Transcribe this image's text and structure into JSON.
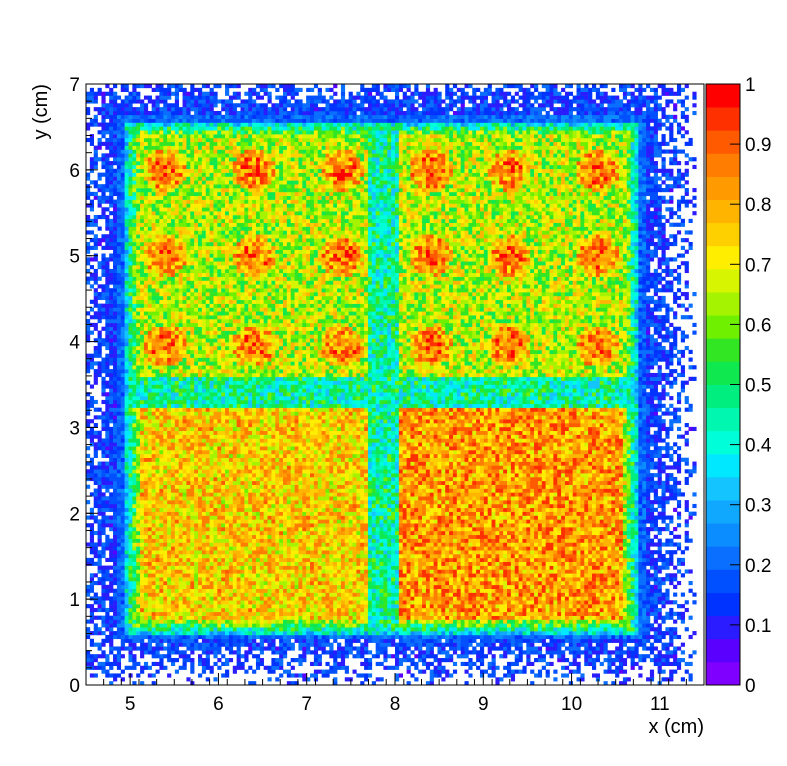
{
  "chart_data": {
    "type": "heatmap",
    "title": "",
    "xlabel": "x (cm)",
    "ylabel": "y (cm)",
    "xlim": [
      4.5,
      11.5
    ],
    "ylim": [
      0,
      7
    ],
    "x_ticks": [
      5,
      6,
      7,
      8,
      9,
      10,
      11
    ],
    "x_tick_labels": [
      "5",
      "6",
      "7",
      "8",
      "9",
      "10",
      "11"
    ],
    "y_ticks": [
      0,
      1,
      2,
      3,
      4,
      5,
      6,
      7
    ],
    "y_tick_labels": [
      "0",
      "1",
      "2",
      "3",
      "4",
      "5",
      "6",
      "7"
    ],
    "z_range": [
      0,
      1
    ],
    "z_ticks": [
      0,
      0.1,
      0.2,
      0.3,
      0.4,
      0.5,
      0.6,
      0.7,
      0.8,
      0.9,
      1
    ],
    "z_tick_labels": [
      "0",
      "0.1",
      "0.2",
      "0.3",
      "0.4",
      "0.5",
      "0.6",
      "0.7",
      "0.8",
      "0.9",
      "1"
    ],
    "grid": false,
    "colorbar": "right",
    "palette": [
      "#7f00ff",
      "#5a00ff",
      "#2b1cff",
      "#0033ff",
      "#0050ff",
      "#0a6eff",
      "#0b8cff",
      "#10a8ff",
      "#14c4ff",
      "#00e8ff",
      "#00ffd8",
      "#00f7b0",
      "#00ee80",
      "#10e850",
      "#33e623",
      "#6ef000",
      "#a6f300",
      "#d8f500",
      "#ffee00",
      "#ffd000",
      "#ffb400",
      "#ff9a00",
      "#ff7d00",
      "#ff5a00",
      "#ff3000",
      "#ff0000"
    ],
    "structure": {
      "frame_x": [
        4.85,
        10.85
      ],
      "frame_y": [
        0.55,
        6.65
      ],
      "active_x": [
        4.95,
        10.75
      ],
      "active_y": [
        0.6,
        6.55
      ],
      "gap_x_center": 7.88,
      "gap_y_center": 3.4,
      "gap_level": 0.45,
      "upper_level": 0.65,
      "lower_left_level": 0.75,
      "lower_right_level": 0.82,
      "edge_level": 0.35,
      "outer_level": 0.15,
      "hotspot_x": [
        5.4,
        6.4,
        7.4,
        8.4,
        9.3,
        10.3
      ],
      "hotspot_y": [
        6.0,
        5.0,
        3.95
      ],
      "hotspot_level": 0.88
    }
  }
}
